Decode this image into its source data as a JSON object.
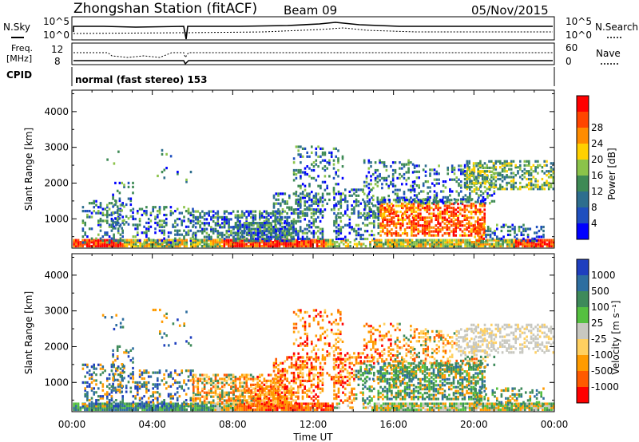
{
  "header": {
    "title": "Zhongshan Station (fitACF)",
    "beam": "Beam 09",
    "date": "05/Nov/2015"
  },
  "panels": {
    "nsky": {
      "label": "N.Sky",
      "ticks": [
        "10^5",
        "10^0"
      ],
      "right_label": "N.Search",
      "right_ticks": [
        "10^5",
        "10^0"
      ]
    },
    "freq": {
      "label_line1": "Freq.",
      "label_line2": "[MHz]",
      "ticks": [
        "12",
        "8"
      ],
      "right_label": "Nave",
      "right_ticks": [
        "60",
        "0"
      ]
    },
    "cpid": {
      "label": "CPID",
      "value": "normal (fast stereo) 153"
    }
  },
  "colors": {
    "power": [
      "#0000ff",
      "#1f4fbf",
      "#2e6e8e",
      "#3e8a55",
      "#8bc34a",
      "#ffd000",
      "#ff8c00",
      "#ff4500",
      "#ff0000"
    ],
    "velocity": [
      "#ff0000",
      "#ff5a00",
      "#ff9b00",
      "#ffd060",
      "#c8c8c0",
      "#55c040",
      "#3e8a5a",
      "#2e6ea0",
      "#1f3fbf"
    ]
  },
  "chart_data": [
    {
      "type": "heatmap",
      "title": "",
      "xlabel": "Time UT",
      "ylabel": "Slant Range [km]",
      "x_ticks": [
        "00:00",
        "04:00",
        "08:00",
        "12:00",
        "16:00",
        "20:00",
        "00:00"
      ],
      "y_ticks": [
        "1000",
        "2000",
        "3000",
        "4000"
      ],
      "ylim": [
        180,
        4600
      ],
      "colorbar": {
        "label": "Power [dB]",
        "ticks": [
          "4",
          "8",
          "12",
          "16",
          "20",
          "24",
          "28"
        ]
      }
    },
    {
      "type": "heatmap",
      "title": "",
      "xlabel": "Time UT",
      "ylabel": "Slant Range [km]",
      "x_ticks": [
        "00:00",
        "04:00",
        "08:00",
        "12:00",
        "16:00",
        "20:00",
        "00:00"
      ],
      "y_ticks": [
        "1000",
        "2000",
        "3000",
        "4000"
      ],
      "ylim": [
        180,
        4600
      ],
      "colorbar": {
        "label": "Velocity [m s⁻¹]",
        "ticks": [
          "-1000",
          "-500",
          "-100",
          "-25",
          "25",
          "100",
          "500",
          "1000"
        ]
      }
    }
  ]
}
